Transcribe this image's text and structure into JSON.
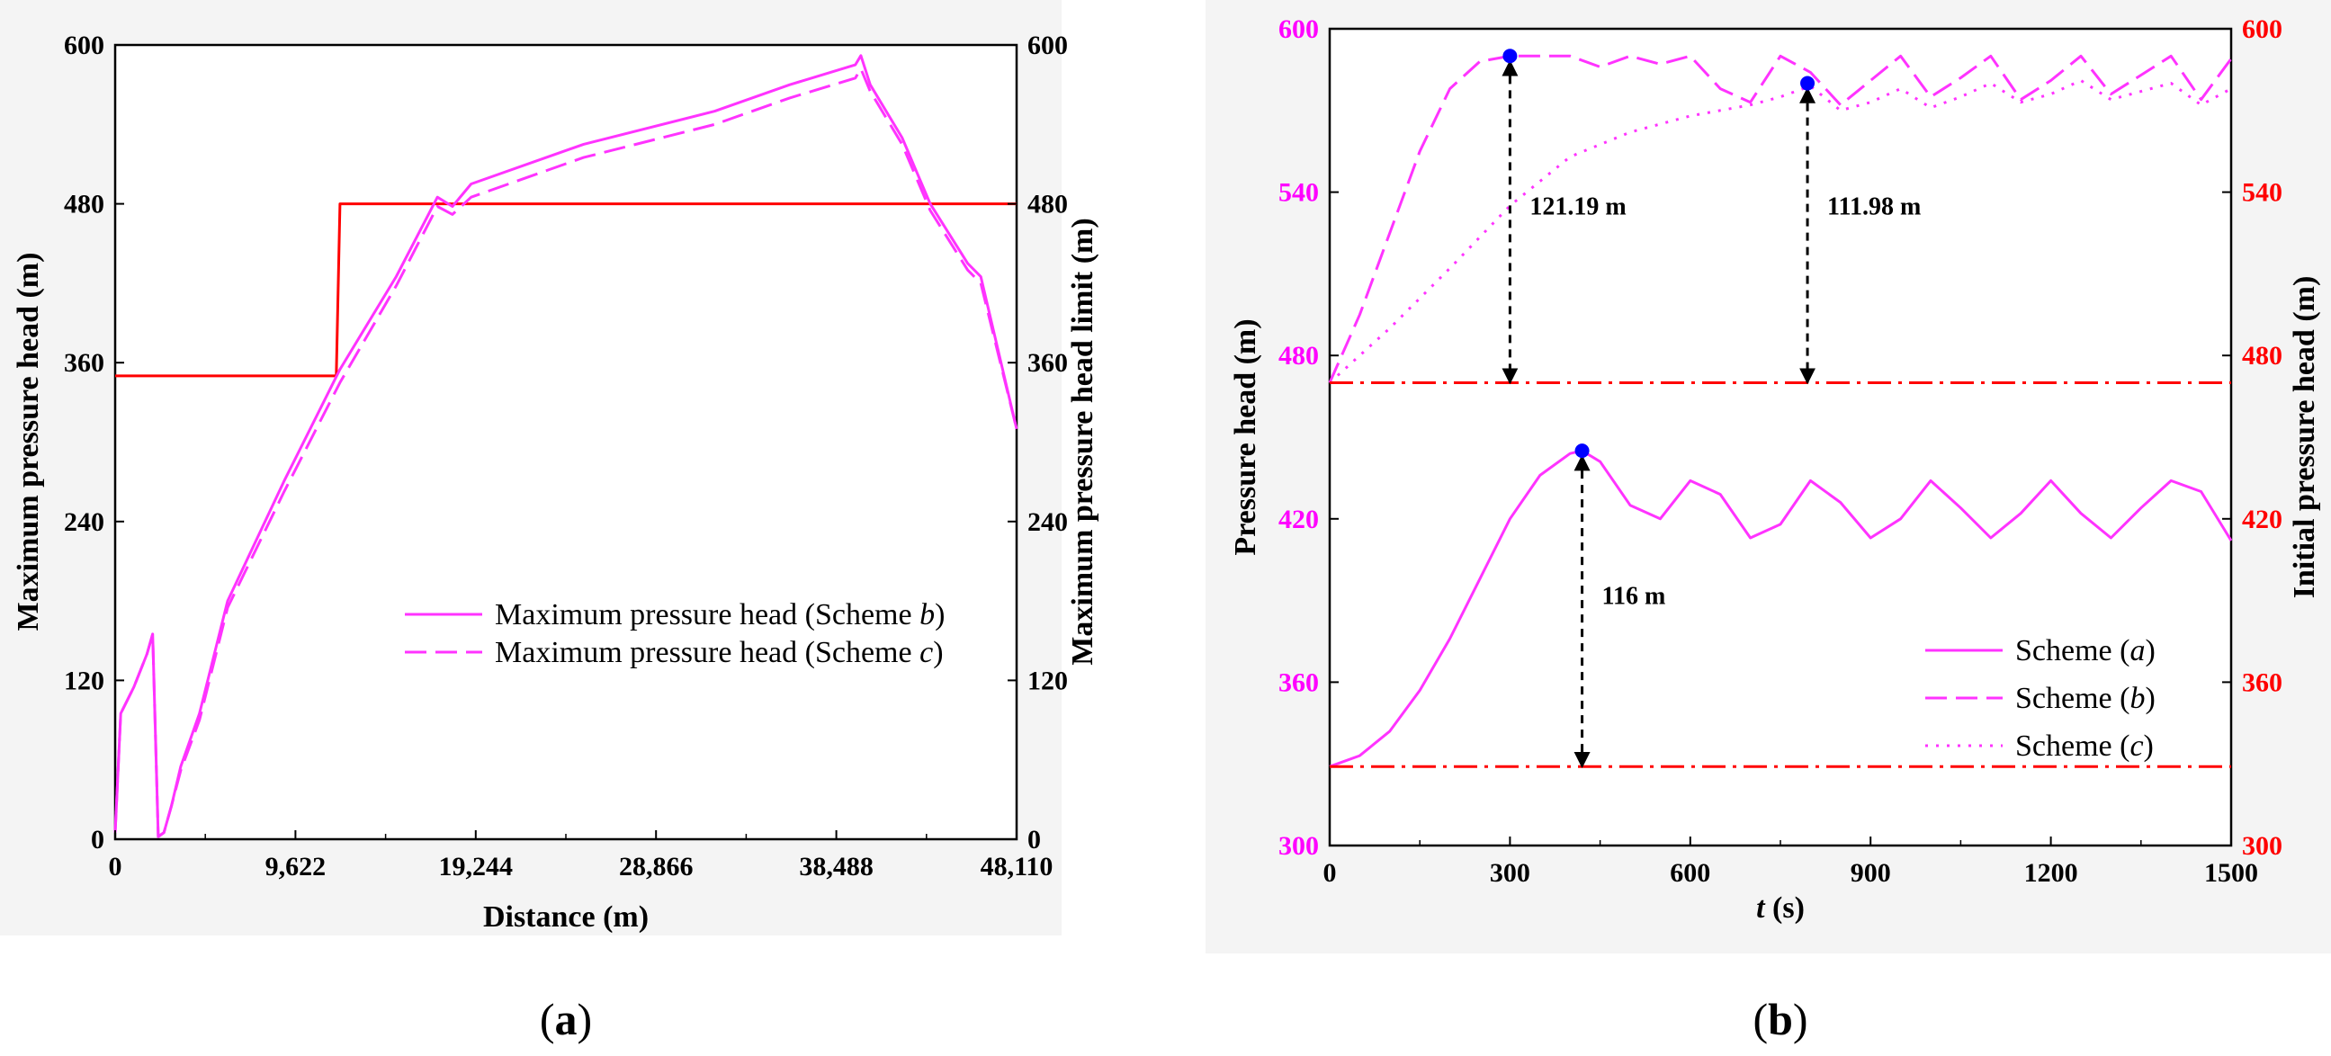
{
  "chart_data": [
    {
      "type": "line",
      "panel_label": "(a)",
      "xlabel": "Distance (m)",
      "ylabel": "Maximum pressure head (m)",
      "ylabel_right": "Maximum pressure head limit (m)",
      "xlim": [
        0,
        48110
      ],
      "ylim": [
        0,
        600
      ],
      "ylim_right": [
        0,
        600
      ],
      "xticks": [
        0,
        9622,
        19244,
        28866,
        38488,
        48110
      ],
      "xtick_labels": [
        "0",
        "9,622",
        "19,244",
        "28,866",
        "38,488",
        "48,110"
      ],
      "yticks": [
        0,
        120,
        240,
        360,
        480,
        600
      ],
      "ytick_labels": [
        "0",
        "120",
        "240",
        "360",
        "480",
        "600"
      ],
      "legend_position": "center-right",
      "series": [
        {
          "name": "Maximum pressure head limit",
          "legend": false,
          "color": "#ff0000",
          "style": "solid",
          "x": [
            0,
            11800,
            12000,
            48110
          ],
          "y": [
            350,
            350,
            480,
            480
          ]
        },
        {
          "name": "Maximum pressure head (Scheme b)",
          "legend_prefix": "Maximum pressure head (Scheme ",
          "legend_italic": "b",
          "legend_suffix": ")",
          "legend": true,
          "color": "#ff33ff",
          "style": "solid",
          "x": [
            0,
            300,
            1000,
            1700,
            2000,
            2300,
            2600,
            3000,
            3500,
            4500,
            6000,
            9000,
            12000,
            15000,
            17200,
            18000,
            19000,
            25000,
            32000,
            36000,
            39500,
            39800,
            40300,
            42000,
            43500,
            45500,
            46200,
            48110
          ],
          "y": [
            5,
            95,
            115,
            140,
            155,
            2,
            5,
            25,
            55,
            95,
            180,
            270,
            355,
            425,
            485,
            478,
            495,
            525,
            550,
            570,
            585,
            592,
            570,
            530,
            480,
            435,
            425,
            310
          ]
        },
        {
          "name": "Maximum pressure head (Scheme c)",
          "legend_prefix": "Maximum pressure head (Scheme ",
          "legend_italic": "c",
          "legend_suffix": ")",
          "legend": true,
          "color": "#ff33ff",
          "style": "dashed",
          "x": [
            0,
            300,
            1000,
            1700,
            2000,
            2300,
            2600,
            3000,
            3500,
            4500,
            6000,
            9000,
            12000,
            15000,
            17200,
            18000,
            19000,
            25000,
            32000,
            36000,
            39500,
            39800,
            40300,
            42000,
            43500,
            45500,
            46200,
            48110
          ],
          "y": [
            5,
            95,
            115,
            140,
            155,
            2,
            5,
            25,
            52,
            90,
            175,
            262,
            345,
            418,
            478,
            472,
            485,
            515,
            540,
            560,
            575,
            582,
            565,
            525,
            475,
            430,
            420,
            310
          ]
        }
      ]
    },
    {
      "type": "line",
      "panel_label": "(b)",
      "xlabel_italic": "t",
      "xlabel_rest": " (s)",
      "ylabel": "Pressure head (m)",
      "ylabel_right": "Initial pressure head (m)",
      "xlim": [
        0,
        1500
      ],
      "ylim": [
        300,
        600
      ],
      "ylim_right": [
        300,
        600
      ],
      "xticks": [
        0,
        300,
        600,
        900,
        1200,
        1500
      ],
      "xtick_labels": [
        "0",
        "300",
        "600",
        "900",
        "1200",
        "1500"
      ],
      "yticks": [
        300,
        360,
        420,
        480,
        540,
        600
      ],
      "ytick_labels": [
        "300",
        "360",
        "420",
        "480",
        "540",
        "600"
      ],
      "legend_position": "lower-right",
      "series": [
        {
          "name": "Scheme (a)",
          "legend_prefix": "Scheme (",
          "legend_italic": "a",
          "legend_suffix": ")",
          "legend": true,
          "color": "#ff33ff",
          "style": "solid",
          "x": [
            0,
            50,
            100,
            150,
            200,
            250,
            300,
            350,
            400,
            420,
            450,
            500,
            550,
            600,
            650,
            700,
            750,
            800,
            850,
            900,
            950,
            1000,
            1050,
            1100,
            1150,
            1200,
            1250,
            1300,
            1350,
            1400,
            1450,
            1500
          ],
          "y": [
            329,
            333,
            342,
            357,
            376,
            398,
            420,
            436,
            444,
            445,
            441,
            425,
            420,
            434,
            429,
            413,
            418,
            434,
            426,
            413,
            420,
            434,
            424,
            413,
            422,
            434,
            422,
            413,
            424,
            434,
            430,
            412
          ]
        },
        {
          "name": "Scheme (b)",
          "legend_prefix": "Scheme (",
          "legend_italic": "b",
          "legend_suffix": ")",
          "legend": true,
          "color": "#ff33ff",
          "style": "dashed",
          "x": [
            0,
            50,
            100,
            150,
            200,
            250,
            300,
            350,
            400,
            450,
            500,
            550,
            600,
            650,
            700,
            750,
            800,
            850,
            900,
            950,
            1000,
            1050,
            1100,
            1150,
            1200,
            1250,
            1300,
            1350,
            1400,
            1450,
            1500
          ],
          "y": [
            470,
            495,
            525,
            555,
            578,
            588,
            590,
            590,
            590,
            586,
            590,
            587,
            590,
            578,
            573,
            590,
            584,
            572,
            581,
            590,
            575,
            582,
            590,
            574,
            581,
            590,
            576,
            583,
            590,
            574,
            589
          ]
        },
        {
          "name": "Scheme (c)",
          "legend_prefix": "Scheme (",
          "legend_italic": "c",
          "legend_suffix": ")",
          "legend": true,
          "color": "#ff33ff",
          "style": "dotted",
          "x": [
            0,
            100,
            200,
            300,
            400,
            500,
            600,
            700,
            750,
            800,
            850,
            900,
            950,
            1000,
            1050,
            1100,
            1150,
            1200,
            1250,
            1300,
            1350,
            1400,
            1450,
            1500
          ],
          "y": [
            470,
            490,
            512,
            535,
            553,
            562,
            568,
            572,
            575,
            579,
            570,
            573,
            578,
            571,
            575,
            580,
            573,
            576,
            581,
            574,
            577,
            580,
            572,
            578
          ]
        },
        {
          "name": "Initial pressure head (Scheme a)",
          "legend": false,
          "color": "#ff0000",
          "style": "dashdot",
          "x": [
            0,
            1500
          ],
          "y": [
            329,
            329
          ]
        },
        {
          "name": "Initial pressure head (Schemes b, c)",
          "legend": false,
          "color": "#ff0000",
          "style": "dashdot",
          "x": [
            0,
            1500
          ],
          "y": [
            470,
            470
          ]
        }
      ],
      "markers": [
        {
          "x": 300,
          "y": 590,
          "color": "#0000ff"
        },
        {
          "x": 420,
          "y": 445,
          "color": "#0000ff"
        },
        {
          "x": 795,
          "y": 580,
          "color": "#0000ff"
        }
      ],
      "annotations": [
        {
          "text": "121.19 m",
          "x": 300,
          "y_top": 588,
          "y_bottom": 470,
          "text_y": 535
        },
        {
          "text": "111.98 m",
          "x": 795,
          "y_top": 578,
          "y_bottom": 470,
          "text_y": 535
        },
        {
          "text": "116 m",
          "x": 420,
          "y_top": 443,
          "y_bottom": 329,
          "text_y": 392
        }
      ]
    }
  ]
}
